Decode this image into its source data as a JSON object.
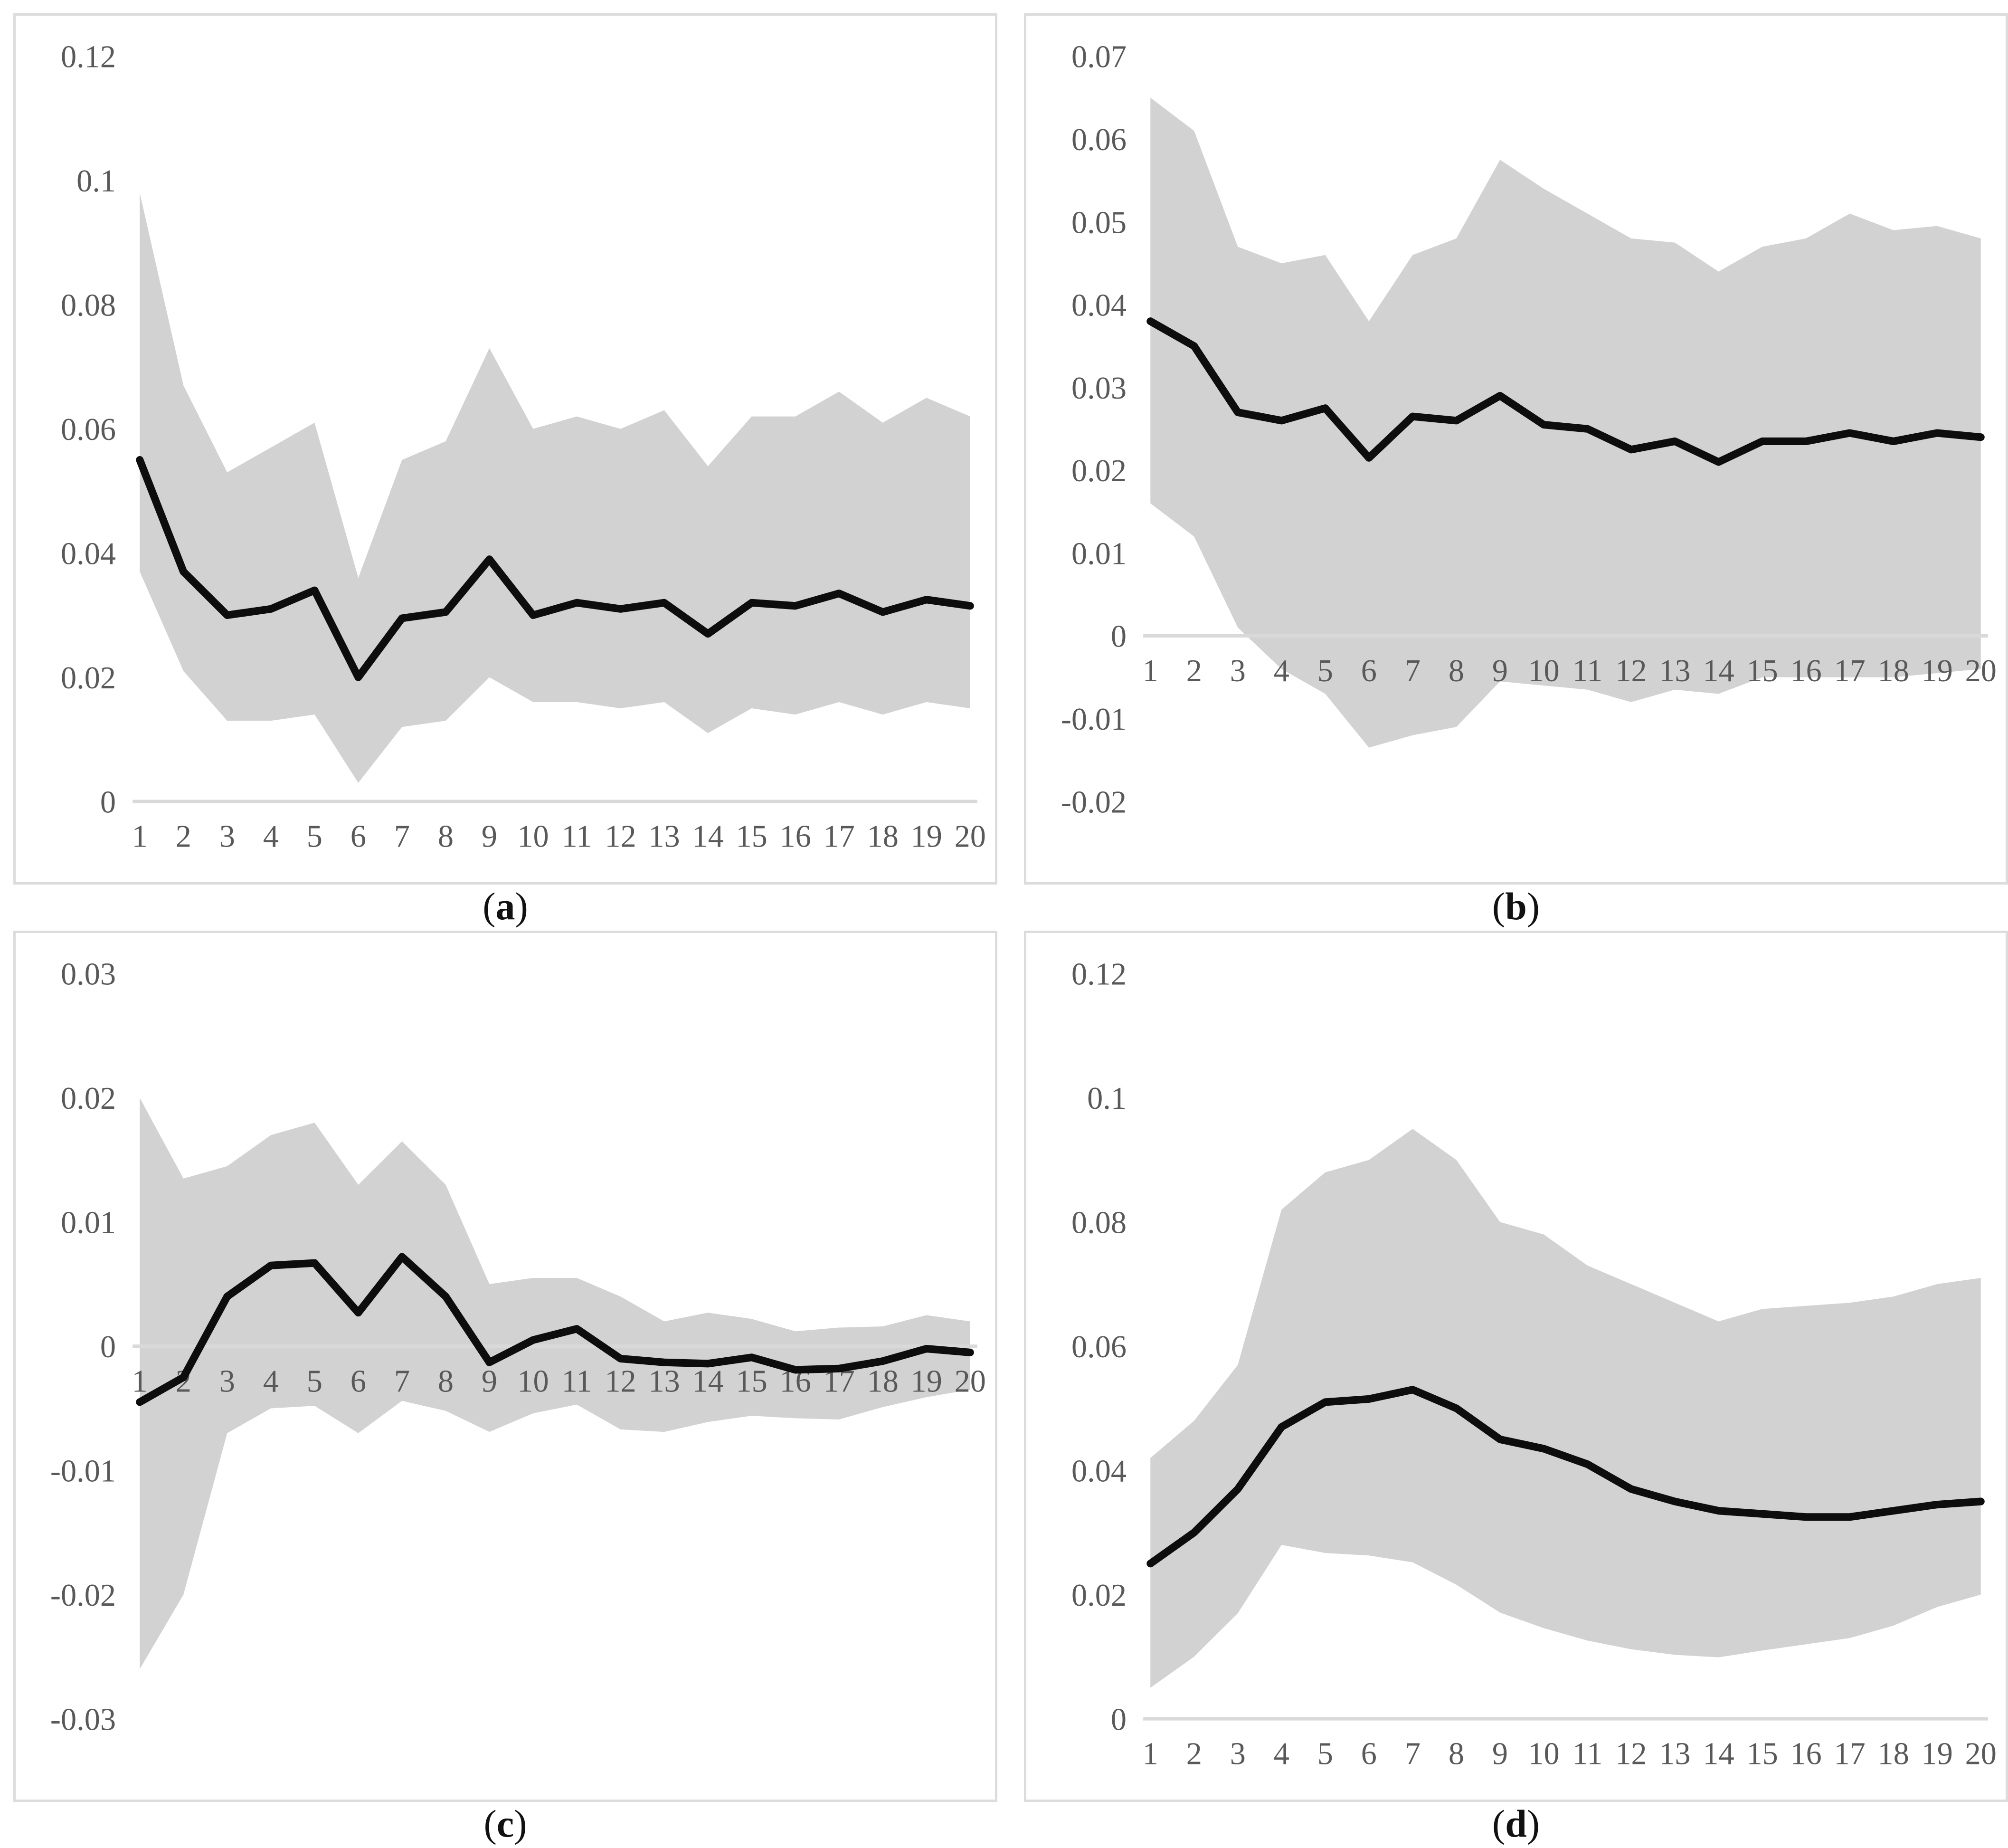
{
  "style": {
    "band_color": "#d2d2d2",
    "line_color": "#0d0d0d",
    "axis_line_color": "#d9d9d9",
    "tick_text_color": "#595959",
    "panel_border_color": "#dcdcdc",
    "line_width": 16,
    "tick_font_size": 66
  },
  "captions": [
    {
      "open": "(",
      "letter": "a",
      "close": ")"
    },
    {
      "open": "(",
      "letter": "b",
      "close": ")"
    },
    {
      "open": "(",
      "letter": "c",
      "close": ")"
    },
    {
      "open": "(",
      "letter": "d",
      "close": ")"
    }
  ],
  "chart_data": [
    {
      "type": "line",
      "panel": "a",
      "title": "",
      "xlabel": "",
      "ylabel": "",
      "x": [
        1,
        2,
        3,
        4,
        5,
        6,
        7,
        8,
        9,
        10,
        11,
        12,
        13,
        14,
        15,
        16,
        17,
        18,
        19,
        20
      ],
      "x_tick_labels": [
        "1",
        "2",
        "3",
        "4",
        "5",
        "6",
        "7",
        "8",
        "9",
        "10",
        "11",
        "12",
        "13",
        "14",
        "15",
        "16",
        "17",
        "18",
        "19",
        "20"
      ],
      "ylim": [
        0,
        0.12
      ],
      "y_ticks": [
        {
          "v": 0.12,
          "label": "0.12"
        },
        {
          "v": 0.1,
          "label": "0.1"
        },
        {
          "v": 0.08,
          "label": "0.08"
        },
        {
          "v": 0.06,
          "label": "0.06"
        },
        {
          "v": 0.04,
          "label": "0.04"
        },
        {
          "v": 0.02,
          "label": "0.02"
        },
        {
          "v": 0.0,
          "label": "0"
        }
      ],
      "series": [
        {
          "name": "upper-band",
          "values": [
            0.098,
            0.067,
            0.053,
            0.057,
            0.061,
            0.036,
            0.055,
            0.058,
            0.073,
            0.06,
            0.062,
            0.06,
            0.063,
            0.054,
            0.062,
            0.062,
            0.066,
            0.061,
            0.065,
            0.062
          ]
        },
        {
          "name": "irf-line",
          "values": [
            0.055,
            0.037,
            0.03,
            0.031,
            0.034,
            0.02,
            0.0295,
            0.0305,
            0.039,
            0.03,
            0.032,
            0.031,
            0.032,
            0.027,
            0.032,
            0.0315,
            0.0335,
            0.0305,
            0.0325,
            0.0315
          ]
        },
        {
          "name": "lower-band",
          "values": [
            0.037,
            0.021,
            0.013,
            0.013,
            0.014,
            0.003,
            0.012,
            0.013,
            0.02,
            0.016,
            0.016,
            0.015,
            0.016,
            0.011,
            0.015,
            0.014,
            0.016,
            0.014,
            0.016,
            0.015
          ]
        }
      ],
      "legend": null,
      "grid": false
    },
    {
      "type": "line",
      "panel": "b",
      "title": "",
      "xlabel": "",
      "ylabel": "",
      "x": [
        1,
        2,
        3,
        4,
        5,
        6,
        7,
        8,
        9,
        10,
        11,
        12,
        13,
        14,
        15,
        16,
        17,
        18,
        19,
        20
      ],
      "x_tick_labels": [
        "1",
        "2",
        "3",
        "4",
        "5",
        "6",
        "7",
        "8",
        "9",
        "10",
        "11",
        "12",
        "13",
        "14",
        "15",
        "16",
        "17",
        "18",
        "19",
        "20"
      ],
      "ylim": [
        -0.02,
        0.07
      ],
      "y_ticks": [
        {
          "v": 0.07,
          "label": "0.07"
        },
        {
          "v": 0.06,
          "label": "0.06"
        },
        {
          "v": 0.05,
          "label": "0.05"
        },
        {
          "v": 0.04,
          "label": "0.04"
        },
        {
          "v": 0.03,
          "label": "0.03"
        },
        {
          "v": 0.02,
          "label": "0.02"
        },
        {
          "v": 0.01,
          "label": "0.01"
        },
        {
          "v": 0.0,
          "label": "0"
        },
        {
          "v": -0.01,
          "label": "-0.01"
        },
        {
          "v": -0.02,
          "label": "-0.02"
        }
      ],
      "series": [
        {
          "name": "upper-band",
          "values": [
            0.065,
            0.061,
            0.047,
            0.045,
            0.046,
            0.038,
            0.046,
            0.048,
            0.0575,
            0.054,
            0.051,
            0.048,
            0.0475,
            0.044,
            0.047,
            0.048,
            0.051,
            0.049,
            0.0495,
            0.048
          ]
        },
        {
          "name": "irf-line",
          "values": [
            0.038,
            0.035,
            0.027,
            0.026,
            0.0275,
            0.0215,
            0.0265,
            0.026,
            0.029,
            0.0255,
            0.025,
            0.0225,
            0.0235,
            0.021,
            0.0235,
            0.0235,
            0.0245,
            0.0235,
            0.0245,
            0.024
          ]
        },
        {
          "name": "lower-band",
          "values": [
            0.016,
            0.012,
            0.001,
            -0.004,
            -0.007,
            -0.0135,
            -0.012,
            -0.011,
            -0.0055,
            -0.006,
            -0.0065,
            -0.008,
            -0.0065,
            -0.007,
            -0.005,
            -0.005,
            -0.005,
            -0.005,
            -0.0045,
            -0.004
          ]
        }
      ],
      "legend": null,
      "grid": false
    },
    {
      "type": "line",
      "panel": "c",
      "title": "",
      "xlabel": "",
      "ylabel": "",
      "x": [
        1,
        2,
        3,
        4,
        5,
        6,
        7,
        8,
        9,
        10,
        11,
        12,
        13,
        14,
        15,
        16,
        17,
        18,
        19,
        20
      ],
      "x_tick_labels": [
        "1",
        "2",
        "3",
        "4",
        "5",
        "6",
        "7",
        "8",
        "9",
        "10",
        "11",
        "12",
        "13",
        "14",
        "15",
        "16",
        "17",
        "18",
        "19",
        "20"
      ],
      "ylim": [
        -0.03,
        0.03
      ],
      "y_ticks": [
        {
          "v": 0.03,
          "label": "0.03"
        },
        {
          "v": 0.02,
          "label": "0.02"
        },
        {
          "v": 0.01,
          "label": "0.01"
        },
        {
          "v": 0.0,
          "label": "0"
        },
        {
          "v": -0.01,
          "label": "-0.01"
        },
        {
          "v": -0.02,
          "label": "-0.02"
        },
        {
          "v": -0.03,
          "label": "-0.03"
        }
      ],
      "series": [
        {
          "name": "upper-band",
          "values": [
            0.02,
            0.0135,
            0.0145,
            0.017,
            0.018,
            0.013,
            0.0165,
            0.013,
            0.005,
            0.0055,
            0.0055,
            0.004,
            0.002,
            0.0027,
            0.0022,
            0.0012,
            0.0015,
            0.0016,
            0.0025,
            0.002
          ]
        },
        {
          "name": "irf-line",
          "values": [
            -0.0045,
            -0.0025,
            0.004,
            0.0065,
            0.0067,
            0.0027,
            0.0072,
            0.004,
            -0.0013,
            0.0005,
            0.0014,
            -0.001,
            -0.0013,
            -0.0014,
            -0.0009,
            -0.0019,
            -0.0018,
            -0.0012,
            -0.0002,
            -0.0005
          ]
        },
        {
          "name": "lower-band",
          "values": [
            -0.026,
            -0.02,
            -0.007,
            -0.005,
            -0.0048,
            -0.007,
            -0.0044,
            -0.0052,
            -0.0069,
            -0.0054,
            -0.0047,
            -0.0067,
            -0.0069,
            -0.0061,
            -0.0056,
            -0.0058,
            -0.0059,
            -0.0049,
            -0.0041,
            -0.0035
          ]
        }
      ],
      "legend": null,
      "grid": false
    },
    {
      "type": "line",
      "panel": "d",
      "title": "",
      "xlabel": "",
      "ylabel": "",
      "x": [
        1,
        2,
        3,
        4,
        5,
        6,
        7,
        8,
        9,
        10,
        11,
        12,
        13,
        14,
        15,
        16,
        17,
        18,
        19,
        20
      ],
      "x_tick_labels": [
        "1",
        "2",
        "3",
        "4",
        "5",
        "6",
        "7",
        "8",
        "9",
        "10",
        "11",
        "12",
        "13",
        "14",
        "15",
        "16",
        "17",
        "18",
        "19",
        "20"
      ],
      "ylim": [
        0,
        0.12
      ],
      "y_ticks": [
        {
          "v": 0.12,
          "label": "0.12"
        },
        {
          "v": 0.1,
          "label": "0.1"
        },
        {
          "v": 0.08,
          "label": "0.08"
        },
        {
          "v": 0.06,
          "label": "0.06"
        },
        {
          "v": 0.04,
          "label": "0.04"
        },
        {
          "v": 0.02,
          "label": "0.02"
        },
        {
          "v": 0.0,
          "label": "0"
        }
      ],
      "series": [
        {
          "name": "upper-band",
          "values": [
            0.042,
            0.048,
            0.057,
            0.082,
            0.088,
            0.09,
            0.095,
            0.09,
            0.08,
            0.078,
            0.073,
            0.07,
            0.067,
            0.064,
            0.066,
            0.0665,
            0.067,
            0.068,
            0.07,
            0.071
          ]
        },
        {
          "name": "irf-line",
          "values": [
            0.025,
            0.03,
            0.037,
            0.047,
            0.051,
            0.0515,
            0.053,
            0.05,
            0.045,
            0.0435,
            0.041,
            0.037,
            0.035,
            0.0335,
            0.033,
            0.0325,
            0.0325,
            0.0335,
            0.0345,
            0.035
          ]
        },
        {
          "name": "lower-band",
          "values": [
            0.005,
            0.01,
            0.017,
            0.028,
            0.0267,
            0.0263,
            0.0252,
            0.0216,
            0.0171,
            0.0146,
            0.0126,
            0.0112,
            0.0103,
            0.0099,
            0.011,
            0.012,
            0.013,
            0.015,
            0.018,
            0.02
          ]
        }
      ],
      "legend": null,
      "grid": false
    }
  ]
}
